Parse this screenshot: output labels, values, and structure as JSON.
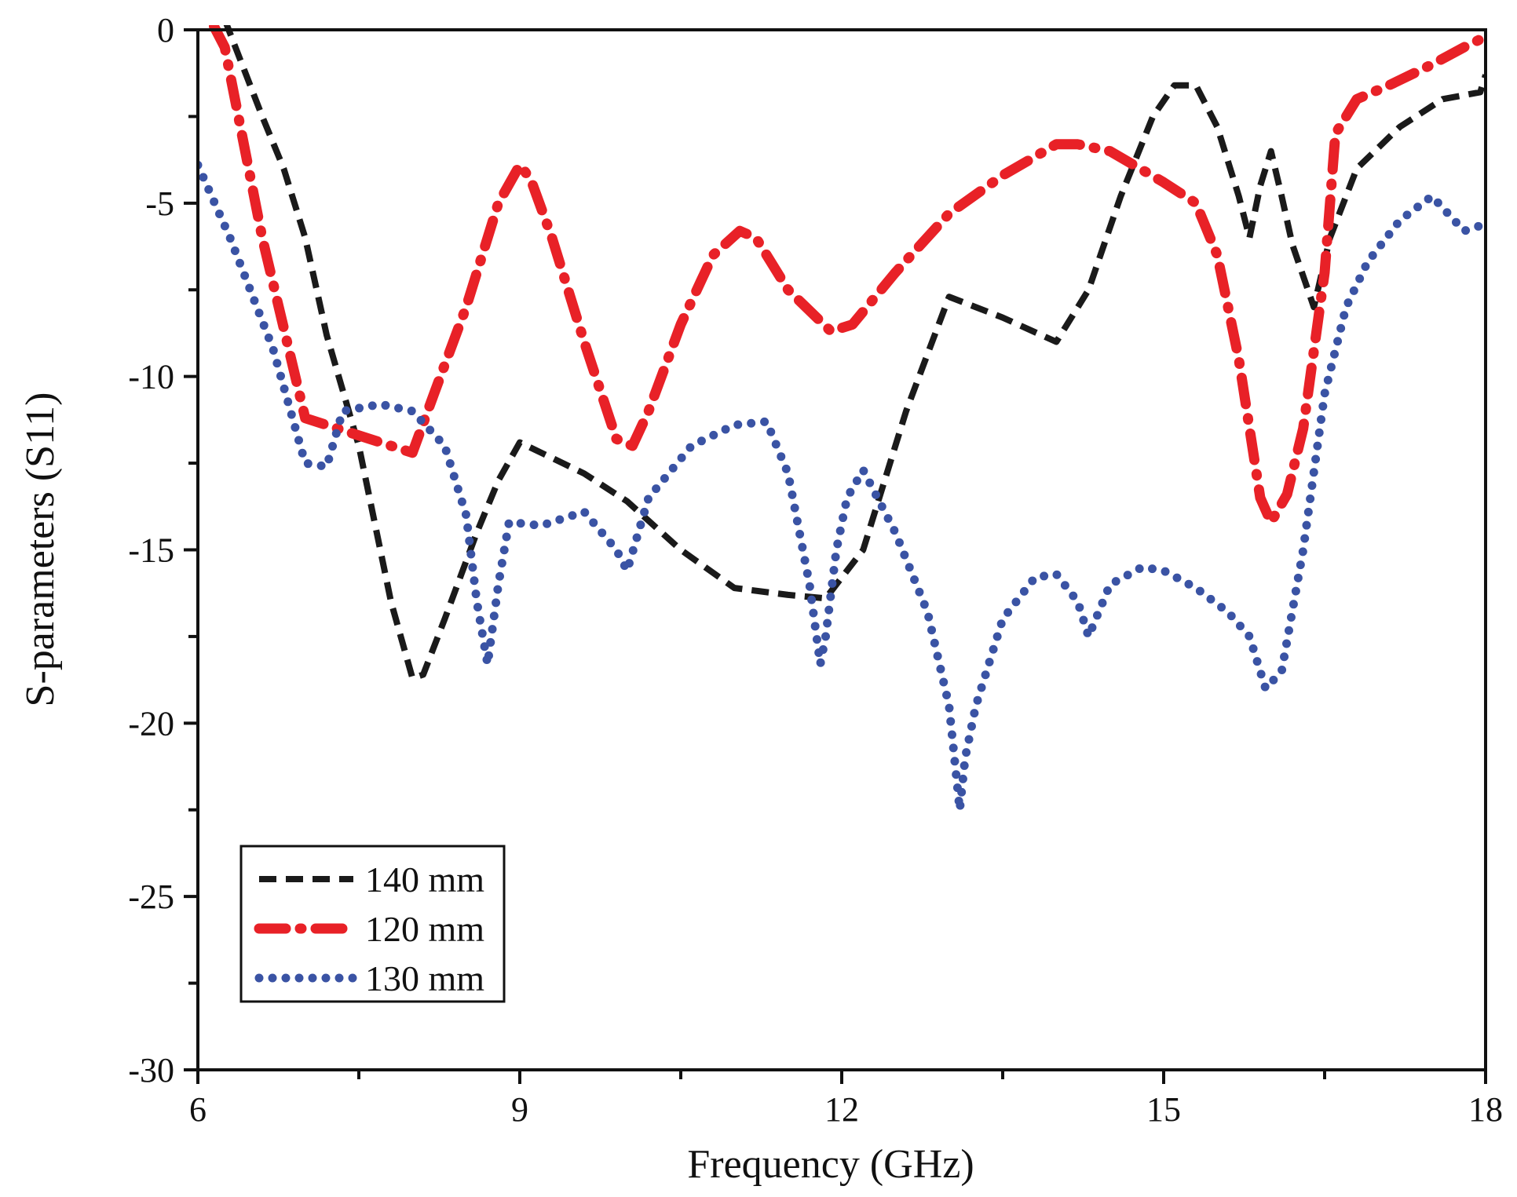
{
  "chart_data": {
    "type": "line",
    "title": "",
    "xlabel": "Frequency (GHz)",
    "ylabel": "S-parameters (S11)",
    "xlim": [
      6,
      18
    ],
    "ylim": [
      -30,
      0
    ],
    "xticks": [
      6,
      9,
      12,
      15,
      18
    ],
    "yticks": [
      0,
      -5,
      -10,
      -15,
      -20,
      -25,
      -30
    ],
    "xtick_labels": [
      "6",
      "9",
      "12",
      "15",
      "18"
    ],
    "ytick_labels": [
      "0",
      "-5",
      "-10",
      "-15",
      "-20",
      "-25",
      "-30"
    ],
    "grid": false,
    "legend_position": "bottom-left",
    "series": [
      {
        "name": "140 mm",
        "color": "#1a1a1a",
        "style": "dashed",
        "x": [
          6.25,
          6.35,
          6.6,
          6.8,
          7.0,
          7.2,
          7.5,
          7.8,
          8.0,
          8.1,
          8.3,
          8.6,
          8.8,
          9.0,
          9.2,
          9.6,
          10.0,
          10.5,
          11.0,
          11.5,
          11.85,
          12.2,
          12.6,
          13.0,
          13.5,
          14.0,
          14.3,
          14.6,
          14.9,
          15.1,
          15.3,
          15.5,
          15.7,
          15.8,
          15.9,
          16.0,
          16.1,
          16.2,
          16.4,
          16.55,
          16.8,
          17.2,
          17.6,
          17.95,
          18.0
        ],
        "values": [
          0.3,
          -0.5,
          -2.5,
          -4.0,
          -6.0,
          -8.8,
          -12.0,
          -16.5,
          -18.7,
          -18.6,
          -17.0,
          -14.5,
          -13.0,
          -11.9,
          -12.2,
          -12.8,
          -13.6,
          -15.0,
          -16.1,
          -16.3,
          -16.4,
          -15.0,
          -11.0,
          -7.7,
          -8.3,
          -9.0,
          -7.5,
          -4.8,
          -2.5,
          -1.6,
          -1.6,
          -2.8,
          -4.8,
          -6.0,
          -4.5,
          -3.5,
          -4.8,
          -6.2,
          -8.0,
          -6.0,
          -4.0,
          -2.8,
          -2.0,
          -1.8,
          -1.3
        ]
      },
      {
        "name": "120 mm",
        "color": "#e82127",
        "style": "dash-dot",
        "x": [
          6.15,
          6.25,
          6.6,
          7.0,
          7.3,
          7.6,
          8.0,
          8.2,
          8.5,
          8.8,
          9.0,
          9.1,
          9.3,
          9.6,
          9.9,
          10.05,
          10.2,
          10.5,
          10.8,
          11.05,
          11.2,
          11.5,
          11.9,
          12.1,
          12.5,
          13.0,
          13.5,
          14.0,
          14.2,
          14.5,
          15.0,
          15.3,
          15.5,
          15.7,
          15.9,
          16.0,
          16.15,
          16.3,
          16.5,
          16.6,
          16.8,
          17.1,
          17.5,
          17.8,
          18.0
        ],
        "values": [
          0.1,
          -0.5,
          -6.0,
          -11.2,
          -11.5,
          -11.8,
          -12.2,
          -10.5,
          -8.0,
          -5.0,
          -3.9,
          -4.3,
          -6.0,
          -9.0,
          -11.8,
          -12.0,
          -11.0,
          -8.5,
          -6.5,
          -5.8,
          -6.0,
          -7.5,
          -8.7,
          -8.5,
          -7.0,
          -5.3,
          -4.2,
          -3.3,
          -3.3,
          -3.5,
          -4.4,
          -5.0,
          -6.5,
          -9.5,
          -13.5,
          -14.2,
          -13.4,
          -11.5,
          -7.0,
          -3.0,
          -2.0,
          -1.6,
          -1.0,
          -0.5,
          -0.2
        ]
      },
      {
        "name": "130 mm",
        "color": "#3a53a4",
        "style": "dotted",
        "x": [
          6.0,
          6.3,
          6.7,
          7.0,
          7.2,
          7.35,
          7.7,
          8.0,
          8.3,
          8.5,
          8.6,
          8.7,
          8.8,
          8.9,
          9.2,
          9.6,
          9.9,
          10.0,
          10.2,
          10.6,
          11.0,
          11.3,
          11.5,
          11.7,
          11.8,
          11.85,
          11.95,
          12.05,
          12.2,
          12.5,
          12.8,
          13.0,
          13.1,
          13.15,
          13.25,
          13.5,
          13.8,
          14.0,
          14.2,
          14.3,
          14.5,
          14.8,
          15.0,
          15.3,
          15.6,
          15.8,
          15.95,
          16.1,
          16.3,
          16.5,
          16.7,
          16.9,
          17.2,
          17.5,
          17.8,
          18.0
        ],
        "values": [
          -3.9,
          -6.0,
          -9.2,
          -12.5,
          -12.6,
          -11.0,
          -10.8,
          -11.0,
          -12.0,
          -14.0,
          -16.5,
          -18.3,
          -16.0,
          -14.2,
          -14.3,
          -13.9,
          -15.0,
          -15.6,
          -13.5,
          -12.0,
          -11.4,
          -11.3,
          -12.8,
          -16.0,
          -18.3,
          -17.5,
          -15.0,
          -13.5,
          -12.7,
          -14.5,
          -16.8,
          -19.5,
          -22.5,
          -21.0,
          -19.5,
          -17.0,
          -15.8,
          -15.7,
          -16.5,
          -17.5,
          -16.0,
          -15.5,
          -15.6,
          -16.1,
          -16.8,
          -17.5,
          -19.0,
          -18.5,
          -15.0,
          -10.5,
          -8.0,
          -6.7,
          -5.5,
          -4.8,
          -5.8,
          -5.6
        ]
      }
    ]
  }
}
